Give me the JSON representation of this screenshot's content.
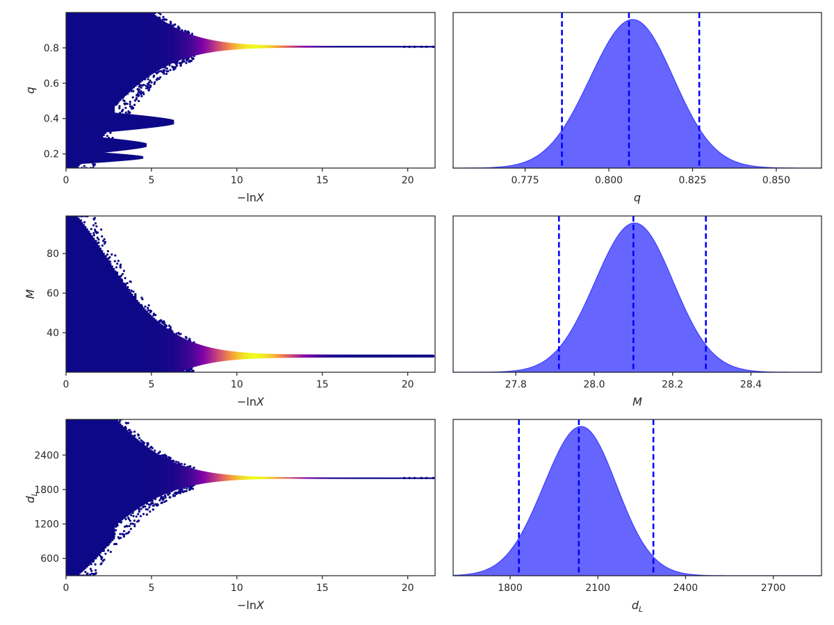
{
  "chart_data": [
    {
      "type": "scatter",
      "xlabel": "−ln X",
      "ylabel": "q",
      "xlim": [
        0,
        21.6
      ],
      "ylim": [
        0.12,
        1.0
      ],
      "x_ticks": [
        "0",
        "5",
        "10",
        "15",
        "20"
      ],
      "y_ticks": [
        "0.2",
        "0.4",
        "0.6",
        "0.8"
      ],
      "trace": {
        "converged_value": 0.806,
        "max_x": 21.5,
        "colormap": "plasma",
        "highlight_x": 11.0,
        "narrow_width": 0.005,
        "upper_limit": 1.0,
        "lobes": [
          {
            "center": 0.38,
            "half_width": 0.022,
            "end_x": 6.3
          },
          {
            "center": 0.25,
            "half_width": 0.018,
            "end_x": 4.7
          },
          {
            "center": 0.18,
            "half_width": 0.012,
            "end_x": 4.5
          }
        ]
      }
    },
    {
      "type": "area",
      "xlabel": "q",
      "xlim": [
        0.7535,
        0.8635
      ],
      "x_ticks": [
        "0.775",
        "0.800",
        "0.825",
        "0.850"
      ],
      "distribution": {
        "mean": 0.8065,
        "std": 0.0125,
        "skew": 0.08
      },
      "vlines": [
        0.786,
        0.806,
        0.827
      ],
      "fill_color": "#6666ff",
      "line_color": "#0000ff"
    },
    {
      "type": "scatter",
      "xlabel": "−ln X",
      "ylabel": "M",
      "xlim": [
        0,
        21.6
      ],
      "ylim": [
        20,
        99
      ],
      "x_ticks": [
        "0",
        "5",
        "10",
        "15",
        "20"
      ],
      "y_ticks": [
        "40",
        "60",
        "80"
      ],
      "trace": {
        "converged_value": 28.1,
        "max_x": 21.5,
        "colormap": "plasma",
        "highlight_x": 11.0,
        "narrow_width": 0.8,
        "upper_limit": 99
      }
    },
    {
      "type": "area",
      "xlabel": "M",
      "xlim": [
        27.64,
        28.58
      ],
      "x_ticks": [
        "27.8",
        "28.0",
        "28.2",
        "28.4"
      ],
      "distribution": {
        "mean": 28.1,
        "std": 0.1,
        "skew": 0.05
      },
      "vlines": [
        27.91,
        28.1,
        28.285
      ],
      "fill_color": "#6666ff",
      "line_color": "#0000ff"
    },
    {
      "type": "scatter",
      "xlabel": "−ln X",
      "ylabel": "d_L",
      "xlim": [
        0,
        21.6
      ],
      "ylim": [
        300,
        3020
      ],
      "x_ticks": [
        "0",
        "5",
        "10",
        "15",
        "20"
      ],
      "y_ticks": [
        "600",
        "1200",
        "1800",
        "2400"
      ],
      "trace": {
        "converged_value": 2000,
        "max_x": 21.5,
        "colormap": "plasma",
        "highlight_x": 11.0,
        "narrow_width": 10,
        "upper_limit": 3020
      }
    },
    {
      "type": "area",
      "xlabel": "d_L",
      "xlim": [
        1605,
        2865
      ],
      "x_ticks": [
        "1800",
        "2100",
        "2400",
        "2700"
      ],
      "distribution": {
        "mean": 2035,
        "std": 125,
        "skew": 0.1
      },
      "vlines": [
        1830,
        2035,
        2290
      ],
      "fill_color": "#6666ff",
      "line_color": "#0000ff"
    }
  ]
}
